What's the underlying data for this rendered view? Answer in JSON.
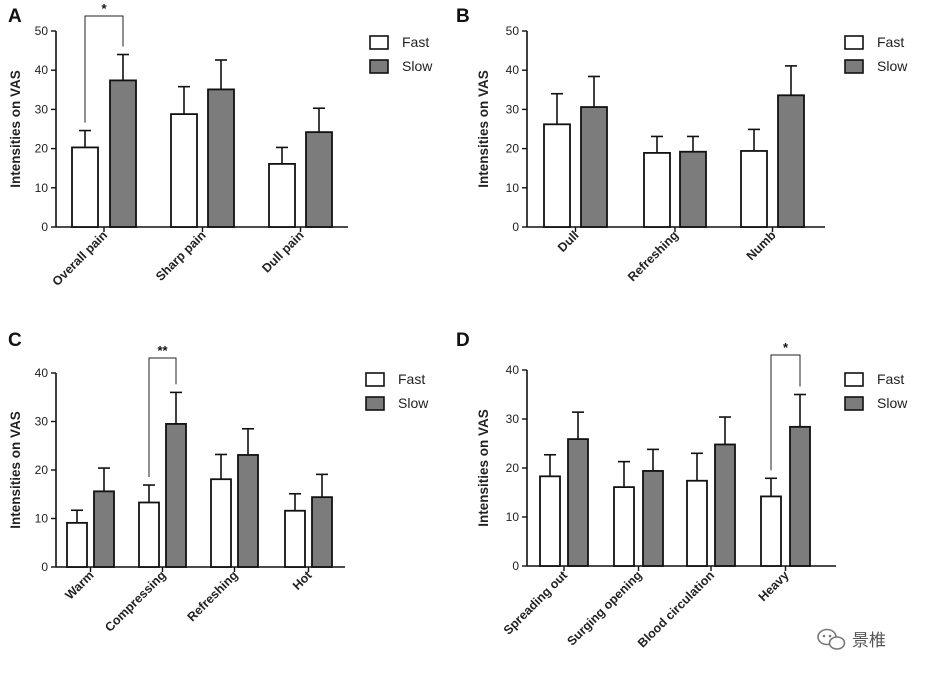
{
  "chart_data": [
    {
      "type": "bar",
      "panel": "A",
      "ylabel": "Intensities on VAS",
      "ylim": [
        0,
        50
      ],
      "yticks": [
        0,
        10,
        20,
        30,
        40,
        50
      ],
      "categories": [
        "Overall pain",
        "Sharp pain",
        "Dull pain"
      ],
      "series": [
        {
          "name": "Fast",
          "values": [
            20.3,
            28.8,
            16.1
          ],
          "errors": [
            4.3,
            7.0,
            4.2
          ]
        },
        {
          "name": "Slow",
          "values": [
            37.4,
            35.1,
            24.2
          ],
          "errors": [
            6.6,
            7.5,
            6.1
          ]
        }
      ],
      "legend": [
        "Fast",
        "Slow"
      ],
      "significance": [
        {
          "category_index": 0,
          "label": "*"
        }
      ]
    },
    {
      "type": "bar",
      "panel": "B",
      "ylabel": "Intensities on VAS",
      "ylim": [
        0,
        50
      ],
      "yticks": [
        0,
        10,
        20,
        30,
        40,
        50
      ],
      "categories": [
        "Dull",
        "Refreshing",
        "Numb"
      ],
      "series": [
        {
          "name": "Fast",
          "values": [
            26.2,
            18.9,
            19.4
          ],
          "errors": [
            7.8,
            4.2,
            5.5
          ]
        },
        {
          "name": "Slow",
          "values": [
            30.6,
            19.2,
            33.6
          ],
          "errors": [
            7.8,
            3.9,
            7.5
          ]
        }
      ],
      "legend": [
        "Fast",
        "Slow"
      ],
      "significance": []
    },
    {
      "type": "bar",
      "panel": "C",
      "ylabel": "Intensities on VAS",
      "ylim": [
        0,
        40
      ],
      "yticks": [
        0,
        10,
        20,
        30,
        40
      ],
      "categories": [
        "Warm",
        "Compressing",
        "Refreshing",
        "Hot"
      ],
      "series": [
        {
          "name": "Fast",
          "values": [
            9.1,
            13.3,
            18.1,
            11.6
          ],
          "errors": [
            2.6,
            3.6,
            5.1,
            3.5
          ]
        },
        {
          "name": "Slow",
          "values": [
            15.6,
            29.5,
            23.1,
            14.4
          ],
          "errors": [
            4.8,
            6.5,
            5.4,
            4.7
          ]
        }
      ],
      "legend": [
        "Fast",
        "Slow"
      ],
      "significance": [
        {
          "category_index": 1,
          "label": "**"
        }
      ]
    },
    {
      "type": "bar",
      "panel": "D",
      "ylabel": "Intensities on VAS",
      "ylim": [
        0,
        40
      ],
      "yticks": [
        0,
        10,
        20,
        30,
        40
      ],
      "categories": [
        "Spreading out",
        "Surging opening",
        "Blood circulation",
        "Heavy"
      ],
      "series": [
        {
          "name": "Fast",
          "values": [
            18.3,
            16.1,
            17.4,
            14.2
          ],
          "errors": [
            4.4,
            5.2,
            5.6,
            3.7
          ]
        },
        {
          "name": "Slow",
          "values": [
            25.9,
            19.4,
            24.8,
            28.4
          ],
          "errors": [
            5.5,
            4.4,
            5.6,
            6.6
          ]
        }
      ],
      "legend": [
        "Fast",
        "Slow"
      ],
      "significance": [
        {
          "category_index": 3,
          "label": "*"
        }
      ]
    }
  ],
  "colors": {
    "fast_fill": "#ffffff",
    "slow_fill": "#7c7c7c",
    "stroke": "#111111"
  },
  "watermark": {
    "icon": "wechat-icon",
    "text": "景椎"
  }
}
